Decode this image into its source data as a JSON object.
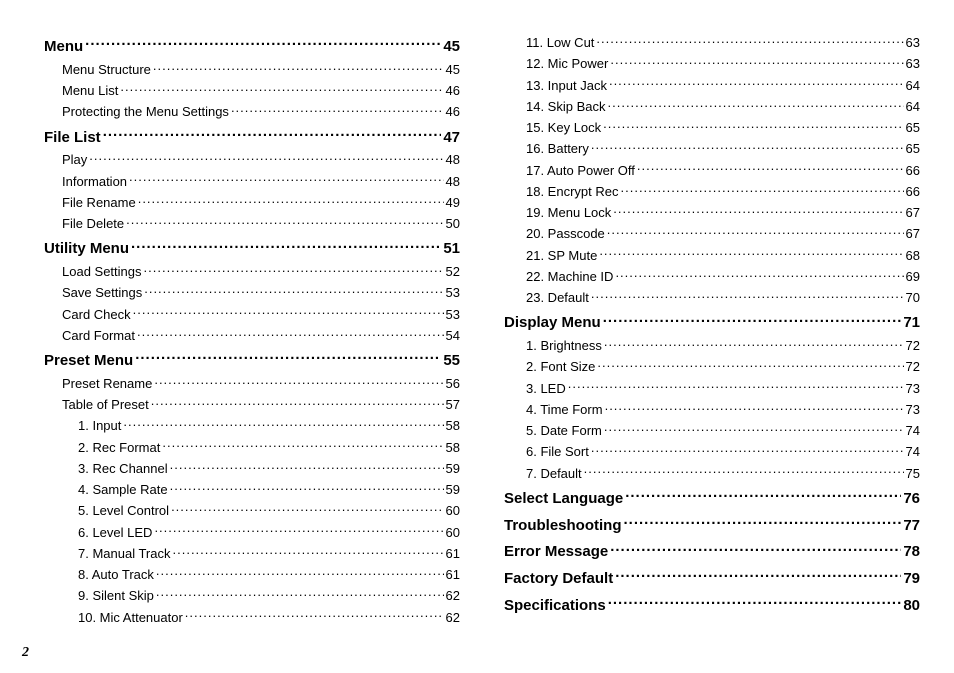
{
  "page_number": "2",
  "columns": {
    "left": [
      {
        "level": 0,
        "label": "Menu",
        "page": "45"
      },
      {
        "level": 1,
        "label": "Menu Structure",
        "page": "45"
      },
      {
        "level": 1,
        "label": "Menu List",
        "page": "46"
      },
      {
        "level": 1,
        "label": "Protecting the Menu Settings",
        "page": "46"
      },
      {
        "level": 0,
        "label": "File List",
        "page": "47"
      },
      {
        "level": 1,
        "label": "Play",
        "page": "48"
      },
      {
        "level": 1,
        "label": "Information",
        "page": "48"
      },
      {
        "level": 1,
        "label": "File Rename",
        "page": "49"
      },
      {
        "level": 1,
        "label": "File Delete",
        "page": "50"
      },
      {
        "level": 0,
        "label": "Utility Menu",
        "page": "51"
      },
      {
        "level": 1,
        "label": "Load Settings",
        "page": "52"
      },
      {
        "level": 1,
        "label": "Save Settings",
        "page": "53"
      },
      {
        "level": 1,
        "label": "Card Check",
        "page": "53"
      },
      {
        "level": 1,
        "label": "Card Format",
        "page": "54"
      },
      {
        "level": 0,
        "label": "Preset Menu",
        "page": "55"
      },
      {
        "level": 1,
        "label": "Preset Rename",
        "page": "56"
      },
      {
        "level": 1,
        "label": "Table of Preset",
        "page": "57"
      },
      {
        "level": 2,
        "label": "1. Input",
        "page": "58"
      },
      {
        "level": 2,
        "label": "2. Rec Format",
        "page": "58"
      },
      {
        "level": 2,
        "label": "3. Rec Channel",
        "page": "59"
      },
      {
        "level": 2,
        "label": "4. Sample Rate",
        "page": "59"
      },
      {
        "level": 2,
        "label": "5. Level Control",
        "page": "60"
      },
      {
        "level": 2,
        "label": "6. Level LED",
        "page": "60"
      },
      {
        "level": 2,
        "label": "7. Manual Track",
        "page": "61"
      },
      {
        "level": 2,
        "label": "8. Auto Track",
        "page": "61"
      },
      {
        "level": 2,
        "label": "9. Silent Skip",
        "page": "62"
      },
      {
        "level": 2,
        "label": "10. Mic Attenuator",
        "page": "62"
      }
    ],
    "right": [
      {
        "level": 2,
        "label": "11. Low Cut",
        "page": "63"
      },
      {
        "level": 2,
        "label": "12. Mic Power",
        "page": "63"
      },
      {
        "level": 2,
        "label": "13. Input Jack",
        "page": "64"
      },
      {
        "level": 2,
        "label": "14. Skip Back",
        "page": "64"
      },
      {
        "level": 2,
        "label": "15. Key Lock",
        "page": "65"
      },
      {
        "level": 2,
        "label": "16. Battery",
        "page": "65"
      },
      {
        "level": 2,
        "label": "17. Auto Power Off",
        "page": "66"
      },
      {
        "level": 2,
        "label": "18. Encrypt Rec",
        "page": "66"
      },
      {
        "level": 2,
        "label": "19. Menu Lock",
        "page": "67"
      },
      {
        "level": 2,
        "label": "20. Passcode",
        "page": "67"
      },
      {
        "level": 2,
        "label": "21. SP Mute",
        "page": "68"
      },
      {
        "level": 2,
        "label": "22. Machine ID",
        "page": "69"
      },
      {
        "level": 2,
        "label": "23. Default",
        "page": "70"
      },
      {
        "level": 0,
        "label": "Display Menu",
        "page": "71"
      },
      {
        "level": 2,
        "label": "1. Brightness",
        "page": "72"
      },
      {
        "level": 2,
        "label": "2. Font Size",
        "page": "72"
      },
      {
        "level": 2,
        "label": "3. LED",
        "page": "73"
      },
      {
        "level": 2,
        "label": "4. Time Form",
        "page": "73"
      },
      {
        "level": 2,
        "label": "5. Date Form",
        "page": "74"
      },
      {
        "level": 2,
        "label": "6. File Sort",
        "page": "74"
      },
      {
        "level": 2,
        "label": "7. Default",
        "page": "75"
      },
      {
        "level": 0,
        "label": "Select Language",
        "page": "76"
      },
      {
        "level": 0,
        "label": "Troubleshooting",
        "page": "77"
      },
      {
        "level": 0,
        "label": "Error Message",
        "page": "78"
      },
      {
        "level": 0,
        "label": "Factory Default",
        "page": "79"
      },
      {
        "level": 0,
        "label": "Specifications",
        "page": "80"
      }
    ]
  }
}
